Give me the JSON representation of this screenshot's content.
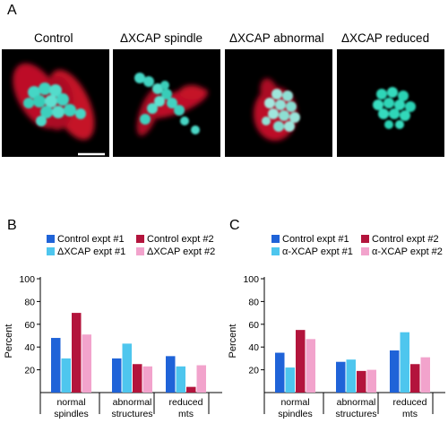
{
  "figure": {
    "panel_letters": [
      "A",
      "B",
      "C"
    ],
    "micrographs": [
      {
        "label": "Control"
      },
      {
        "label": "ΔXCAP spindle"
      },
      {
        "label": "ΔXCAP abnormal"
      },
      {
        "label": "ΔXCAP reduced"
      }
    ]
  },
  "colors": {
    "dark_blue": "#1f63d8",
    "light_blue": "#4ec6ee",
    "dark_red": "#b3143c",
    "pink": "#f2a3cc",
    "microtubule_red": "#d0122b",
    "chromatin_cyan": "#34d9c0"
  },
  "chart_data": [
    {
      "type": "bar",
      "panel": "B",
      "categories": [
        [
          "normal",
          "spindles"
        ],
        [
          "abnormal",
          "structures"
        ],
        [
          "reduced",
          "mts"
        ]
      ],
      "ylabel": "Percent",
      "ylim": [
        0,
        100
      ],
      "yticks": [
        20,
        40,
        60,
        80,
        100
      ],
      "legend_placement": "top",
      "series": [
        {
          "name": "Control expt #1",
          "color": "#1f63d8",
          "values": [
            48,
            30,
            32
          ]
        },
        {
          "name": "ΔXCAP expt #1",
          "color": "#4ec6ee",
          "values": [
            30,
            43,
            23
          ]
        },
        {
          "name": "Control expt #2",
          "color": "#b3143c",
          "values": [
            70,
            25,
            5
          ]
        },
        {
          "name": "ΔXCAP expt #2",
          "color": "#f2a3cc",
          "values": [
            51,
            23,
            24
          ]
        }
      ]
    },
    {
      "type": "bar",
      "panel": "C",
      "categories": [
        [
          "normal",
          "spindles"
        ],
        [
          "abnormal",
          "structures"
        ],
        [
          "reduced",
          "mts"
        ]
      ],
      "ylabel": "Percent",
      "ylim": [
        0,
        100
      ],
      "yticks": [
        20,
        40,
        60,
        80,
        100
      ],
      "legend_placement": "top",
      "series": [
        {
          "name": "Control expt #1",
          "color": "#1f63d8",
          "values": [
            35,
            27,
            37
          ]
        },
        {
          "name": "α-XCAP expt #1",
          "color": "#4ec6ee",
          "values": [
            22,
            29,
            53
          ]
        },
        {
          "name": "Control expt #2",
          "color": "#b3143c",
          "values": [
            55,
            19,
            25
          ]
        },
        {
          "name": "α-XCAP expt #2",
          "color": "#f2a3cc",
          "values": [
            47,
            20,
            31
          ]
        }
      ]
    }
  ]
}
